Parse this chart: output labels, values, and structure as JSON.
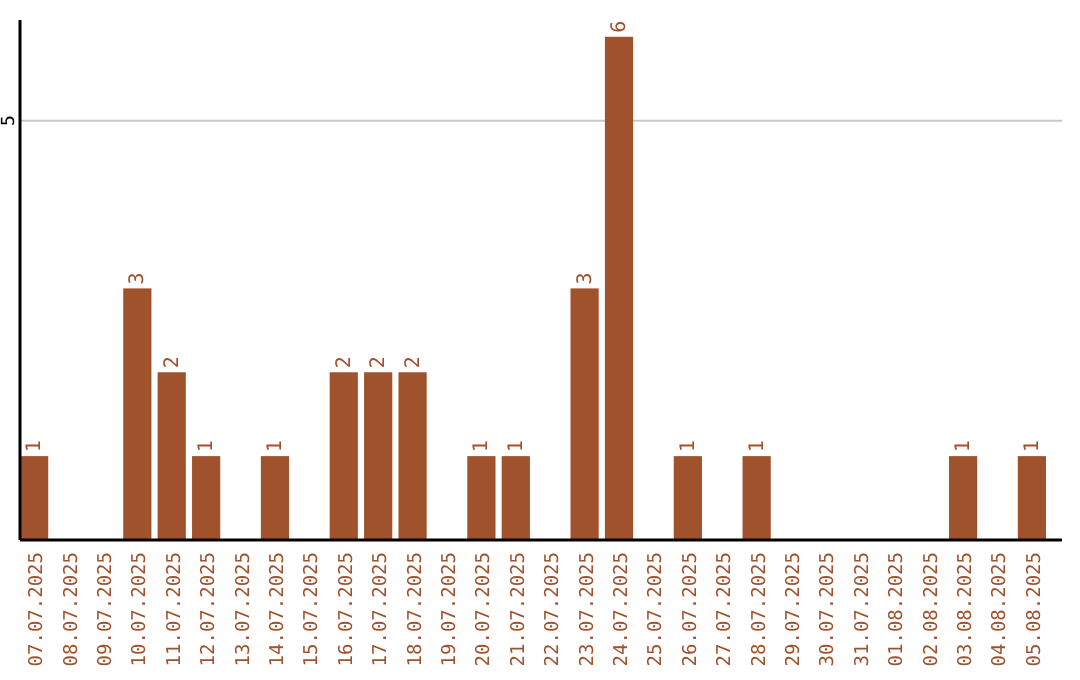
{
  "chart_data": {
    "type": "bar",
    "categories": [
      "07.07.2025",
      "08.07.2025",
      "09.07.2025",
      "10.07.2025",
      "11.07.2025",
      "12.07.2025",
      "13.07.2025",
      "14.07.2025",
      "15.07.2025",
      "16.07.2025",
      "17.07.2025",
      "18.07.2025",
      "19.07.2025",
      "20.07.2025",
      "21.07.2025",
      "22.07.2025",
      "23.07.2025",
      "24.07.2025",
      "25.07.2025",
      "26.07.2025",
      "27.07.2025",
      "28.07.2025",
      "29.07.2025",
      "30.07.2025",
      "31.07.2025",
      "01.08.2025",
      "02.08.2025",
      "03.08.2025",
      "04.08.2025",
      "05.08.2025"
    ],
    "values": [
      1,
      0,
      0,
      3,
      2,
      1,
      0,
      1,
      0,
      2,
      2,
      2,
      0,
      1,
      1,
      0,
      3,
      6,
      0,
      1,
      0,
      1,
      0,
      0,
      0,
      0,
      0,
      1,
      0,
      1
    ],
    "value_labels": [
      "1",
      null,
      null,
      "3",
      "2",
      "1",
      null,
      "1",
      null,
      "2",
      "2",
      "2",
      null,
      "1",
      "1",
      null,
      "3",
      "6",
      null,
      "1",
      null,
      "1",
      null,
      null,
      null,
      null,
      null,
      "1",
      null,
      "1"
    ],
    "color": "#a0522d",
    "ylim": [
      0,
      6.2
    ],
    "yticks": [
      5
    ],
    "grid": "y"
  }
}
